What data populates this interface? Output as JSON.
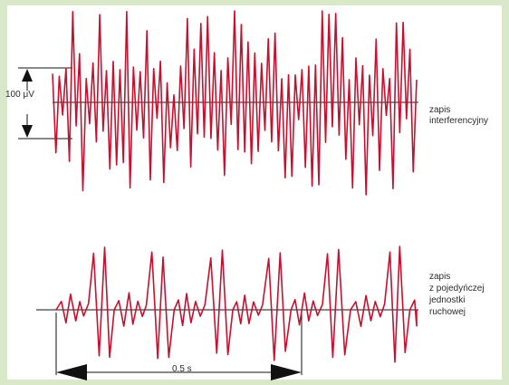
{
  "colors": {
    "frame": "#d9e8c8",
    "panel": "#ffffff",
    "signal": "#c8102e",
    "line": "#111111",
    "text": "#2b2b2b"
  },
  "diagram": {
    "traces": [
      {
        "id": "interference",
        "label_lines": [
          "zapis",
          "interferencyjny"
        ],
        "spikes_hint": "many irregular spikes"
      },
      {
        "id": "single-motor-unit",
        "label_lines": [
          "zapis",
          "z pojedyńczej",
          "jednostki",
          "ruchowej"
        ],
        "spikes_hint": "repeating bursts"
      }
    ],
    "amplitude_scale_label": "100 μV",
    "time_scale_label": "0.5 s"
  }
}
